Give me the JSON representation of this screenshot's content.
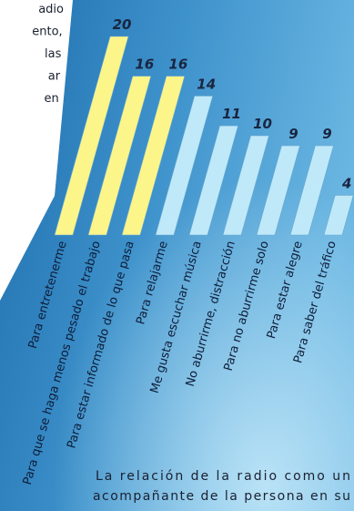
{
  "chart_data": {
    "type": "bar",
    "categories": [
      "Para entretenerme",
      "Para que se haga menos pesado el trabajo",
      "Para estar informado de lo que pasa",
      "Para relajarme",
      "Me gusta escuchar música",
      "No aburrirme, distracción",
      "Para no aburrirme solo",
      "Para estar alegre",
      "Para saber del tráfico"
    ],
    "values": [
      20,
      16,
      16,
      14,
      11,
      10,
      9,
      9,
      4
    ],
    "colors": [
      "#fbf58a",
      "#fbf58a",
      "#fbf58a",
      "#bfe9f9",
      "#bfe9f9",
      "#bfe9f9",
      "#bfe9f9",
      "#bfe9f9",
      "#bfe9f9"
    ]
  },
  "side_text": [
    "adio",
    "ento,",
    "las",
    "ar",
    "en"
  ],
  "caption": [
    "La relación de la radio como un",
    "acompañante de la persona en su"
  ]
}
